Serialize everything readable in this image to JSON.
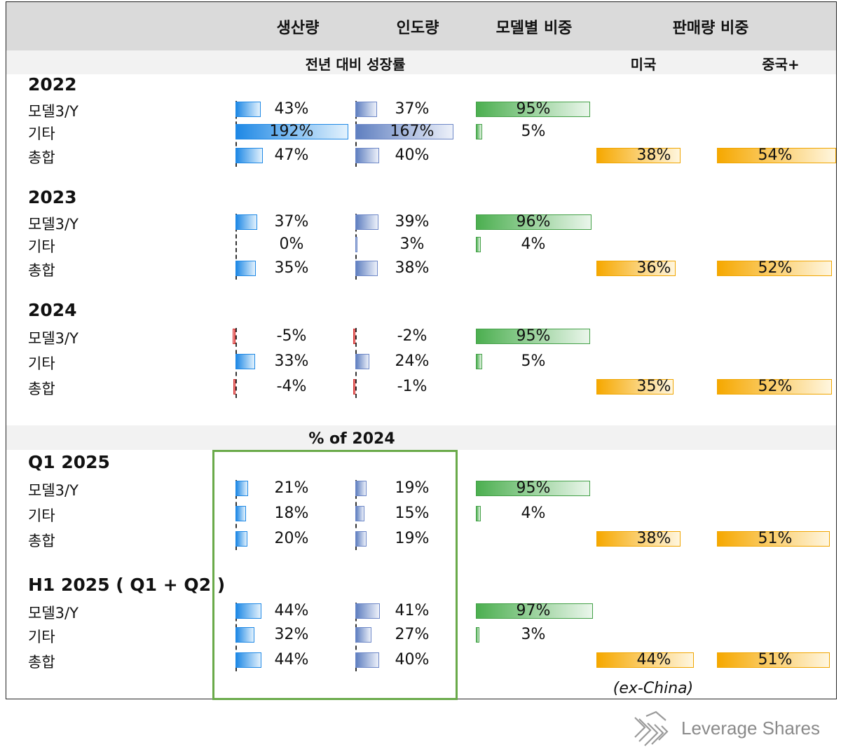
{
  "headers": {
    "production": "생산량",
    "delivery": "인도량",
    "model_mix": "모델별 비중",
    "sales_share": "판매량 비중",
    "yoy_growth": "전년 대비 성장률",
    "us": "미국",
    "china_plus": "중국+",
    "pct_of_2024": "% of 2024"
  },
  "note": "(ex-China)",
  "brand": "Leverage Shares",
  "colors": {
    "production": "#1e88e5",
    "delivery": "#6d87c7",
    "negative": "#d32f2f",
    "model_mix": "#43a047",
    "sales_share": "#f6a800",
    "highlight_box": "#6aaa4a"
  },
  "chart_data": {
    "type": "table",
    "columns": [
      "생산량",
      "인도량",
      "모델별 비중",
      "미국",
      "중국+"
    ],
    "sections": [
      {
        "title": "2022",
        "rows": [
          {
            "label": "모델3/Y",
            "production": 43,
            "delivery": 37,
            "model_mix": 95,
            "us": null,
            "china_plus": null
          },
          {
            "label": "기타",
            "production": 192,
            "delivery": 167,
            "model_mix": 5,
            "us": null,
            "china_plus": null
          },
          {
            "label": "총합",
            "production": 47,
            "delivery": 40,
            "model_mix": null,
            "us": 38,
            "china_plus": 54
          }
        ]
      },
      {
        "title": "2023",
        "rows": [
          {
            "label": "모델3/Y",
            "production": 37,
            "delivery": 39,
            "model_mix": 96,
            "us": null,
            "china_plus": null
          },
          {
            "label": "기타",
            "production": 0,
            "delivery": 3,
            "model_mix": 4,
            "us": null,
            "china_plus": null
          },
          {
            "label": "총합",
            "production": 35,
            "delivery": 38,
            "model_mix": null,
            "us": 36,
            "china_plus": 52
          }
        ]
      },
      {
        "title": "2024",
        "rows": [
          {
            "label": "모델3/Y",
            "production": -5,
            "delivery": -2,
            "model_mix": 95,
            "us": null,
            "china_plus": null
          },
          {
            "label": "기타",
            "production": 33,
            "delivery": 24,
            "model_mix": 5,
            "us": null,
            "china_plus": null
          },
          {
            "label": "총합",
            "production": -4,
            "delivery": -1,
            "model_mix": null,
            "us": 35,
            "china_plus": 52
          }
        ]
      },
      {
        "title": "Q1 2025",
        "rows": [
          {
            "label": "모델3/Y",
            "production": 21,
            "delivery": 19,
            "model_mix": 95,
            "us": null,
            "china_plus": null
          },
          {
            "label": "기타",
            "production": 18,
            "delivery": 15,
            "model_mix": 4,
            "us": null,
            "china_plus": null
          },
          {
            "label": "총합",
            "production": 20,
            "delivery": 19,
            "model_mix": null,
            "us": 38,
            "china_plus": 51
          }
        ]
      },
      {
        "title": "H1 2025 ( Q1 + Q2 )",
        "rows": [
          {
            "label": "모델3/Y",
            "production": 44,
            "delivery": 41,
            "model_mix": 97,
            "us": null,
            "china_plus": null
          },
          {
            "label": "기타",
            "production": 32,
            "delivery": 27,
            "model_mix": 3,
            "us": null,
            "china_plus": null
          },
          {
            "label": "총합",
            "production": 44,
            "delivery": 40,
            "model_mix": null,
            "us": 44,
            "china_plus": 51
          }
        ]
      }
    ]
  }
}
